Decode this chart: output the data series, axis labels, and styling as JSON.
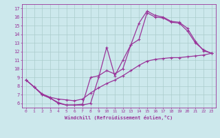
{
  "xlabel": "Windchill (Refroidissement éolien,°C)",
  "bg_color": "#cce8ec",
  "grid_color": "#aacccc",
  "line_color": "#993399",
  "xlim": [
    -0.5,
    23.5
  ],
  "ylim": [
    5.5,
    17.5
  ],
  "xticks": [
    0,
    1,
    2,
    3,
    4,
    5,
    6,
    7,
    8,
    9,
    10,
    11,
    12,
    13,
    14,
    15,
    16,
    17,
    18,
    19,
    20,
    21,
    22,
    23
  ],
  "yticks": [
    6,
    7,
    8,
    9,
    10,
    11,
    12,
    13,
    14,
    15,
    16,
    17
  ],
  "line1_x": [
    0,
    1,
    2,
    3,
    4,
    5,
    6,
    7,
    8,
    9,
    10,
    11,
    12,
    13,
    14,
    15,
    16,
    17,
    18,
    19,
    20,
    21,
    22,
    23
  ],
  "line1_y": [
    8.7,
    7.9,
    7.0,
    6.6,
    6.1,
    5.8,
    5.8,
    5.8,
    6.0,
    9.0,
    12.5,
    9.2,
    11.0,
    12.8,
    15.3,
    16.7,
    16.2,
    16.0,
    15.5,
    15.4,
    14.7,
    13.2,
    12.1,
    11.8
  ],
  "line2_x": [
    0,
    1,
    2,
    3,
    4,
    5,
    6,
    7,
    8,
    9,
    10,
    11,
    12,
    13,
    14,
    15,
    16,
    17,
    18,
    19,
    20,
    21,
    22,
    23
  ],
  "line2_y": [
    8.7,
    7.9,
    7.1,
    6.7,
    6.5,
    6.4,
    6.3,
    6.5,
    7.2,
    7.8,
    8.3,
    8.7,
    9.2,
    9.8,
    10.4,
    10.9,
    11.1,
    11.2,
    11.3,
    11.3,
    11.4,
    11.5,
    11.6,
    11.8
  ],
  "line3_x": [
    0,
    1,
    2,
    3,
    4,
    5,
    6,
    7,
    8,
    9,
    10,
    11,
    12,
    13,
    14,
    15,
    16,
    17,
    18,
    19,
    20,
    21,
    22,
    23
  ],
  "line3_y": [
    8.7,
    7.9,
    7.0,
    6.6,
    6.0,
    5.8,
    5.8,
    5.9,
    9.0,
    9.2,
    9.8,
    9.4,
    10.0,
    12.8,
    13.4,
    16.5,
    16.0,
    15.9,
    15.4,
    15.3,
    14.4,
    13.0,
    12.2,
    11.8
  ]
}
